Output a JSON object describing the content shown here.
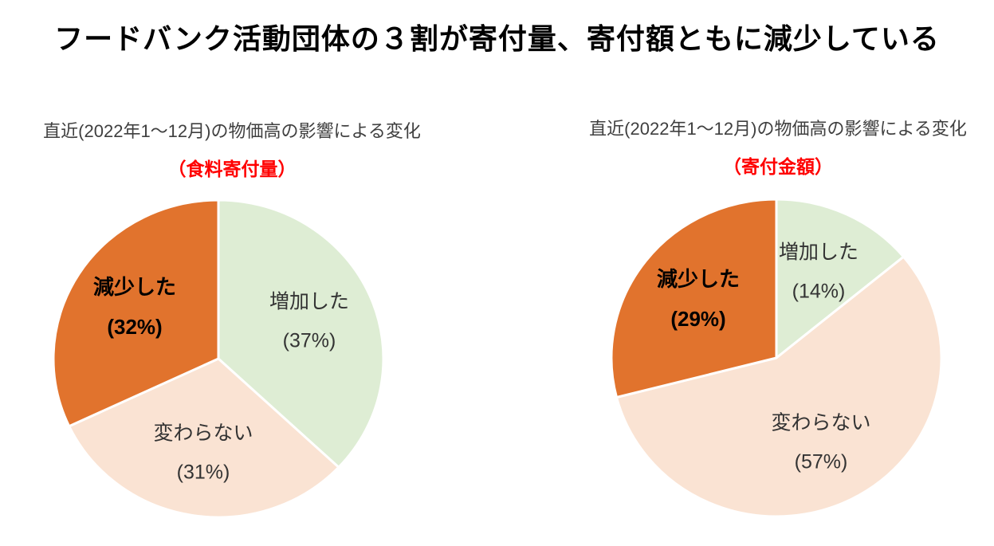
{
  "title": "フードバンク活動団体の３割が寄付量、寄付額ともに減少している",
  "charts": [
    {
      "subtitle": "直近(2022年1〜12月)の物価高の影響による変化",
      "measure_label": "（食料寄付量）"
    },
    {
      "subtitle": "直近(2022年1〜12月)の物価高の影響による変化",
      "measure_label": "（寄付金額）"
    }
  ],
  "chart_data": [
    {
      "type": "pie",
      "title": "直近(2022年1〜12月)の物価高の影響による変化（食料寄付量）",
      "categories": [
        "増加した",
        "変わらない",
        "減少した"
      ],
      "values": [
        37,
        31,
        32
      ],
      "unit": "%",
      "start_angle": "top",
      "direction": "clockwise",
      "legend": "none",
      "slices": [
        {
          "key": "increase",
          "label": "増加した",
          "pct": 37,
          "value_label": "(37%)",
          "color": "#DEEDD4",
          "emphasis": false
        },
        {
          "key": "unchanged",
          "label": "変わらない",
          "pct": 31,
          "value_label": "(31%)",
          "color": "#FAE3D3",
          "emphasis": false
        },
        {
          "key": "decrease",
          "label": "減少した",
          "pct": 32,
          "value_label": "(32%)",
          "color": "#E1732D",
          "emphasis": true
        }
      ]
    },
    {
      "type": "pie",
      "title": "直近(2022年1〜12月)の物価高の影響による変化（寄付金額）",
      "categories": [
        "増加した",
        "変わらない",
        "減少した"
      ],
      "values": [
        14,
        57,
        29
      ],
      "unit": "%",
      "start_angle": "top",
      "direction": "clockwise",
      "legend": "none",
      "slices": [
        {
          "key": "increase",
          "label": "増加した",
          "pct": 14,
          "value_label": "(14%)",
          "color": "#DEEDD4",
          "emphasis": false
        },
        {
          "key": "unchanged",
          "label": "変わらない",
          "pct": 57,
          "value_label": "(57%)",
          "color": "#FAE3D3",
          "emphasis": false
        },
        {
          "key": "decrease",
          "label": "減少した",
          "pct": 29,
          "value_label": "(29%)",
          "color": "#E1732D",
          "emphasis": true
        }
      ]
    }
  ],
  "colors": {
    "increase": "#DEEDD4",
    "unchanged": "#FAE3D3",
    "decrease": "#E1732D",
    "slice_border": "#FFFFFF",
    "title_text": "#000000",
    "subtitle_text": "#3F3F3F",
    "measure_red": "#FF0000",
    "label_text": "#333333",
    "emphasis_text": "#000000"
  }
}
